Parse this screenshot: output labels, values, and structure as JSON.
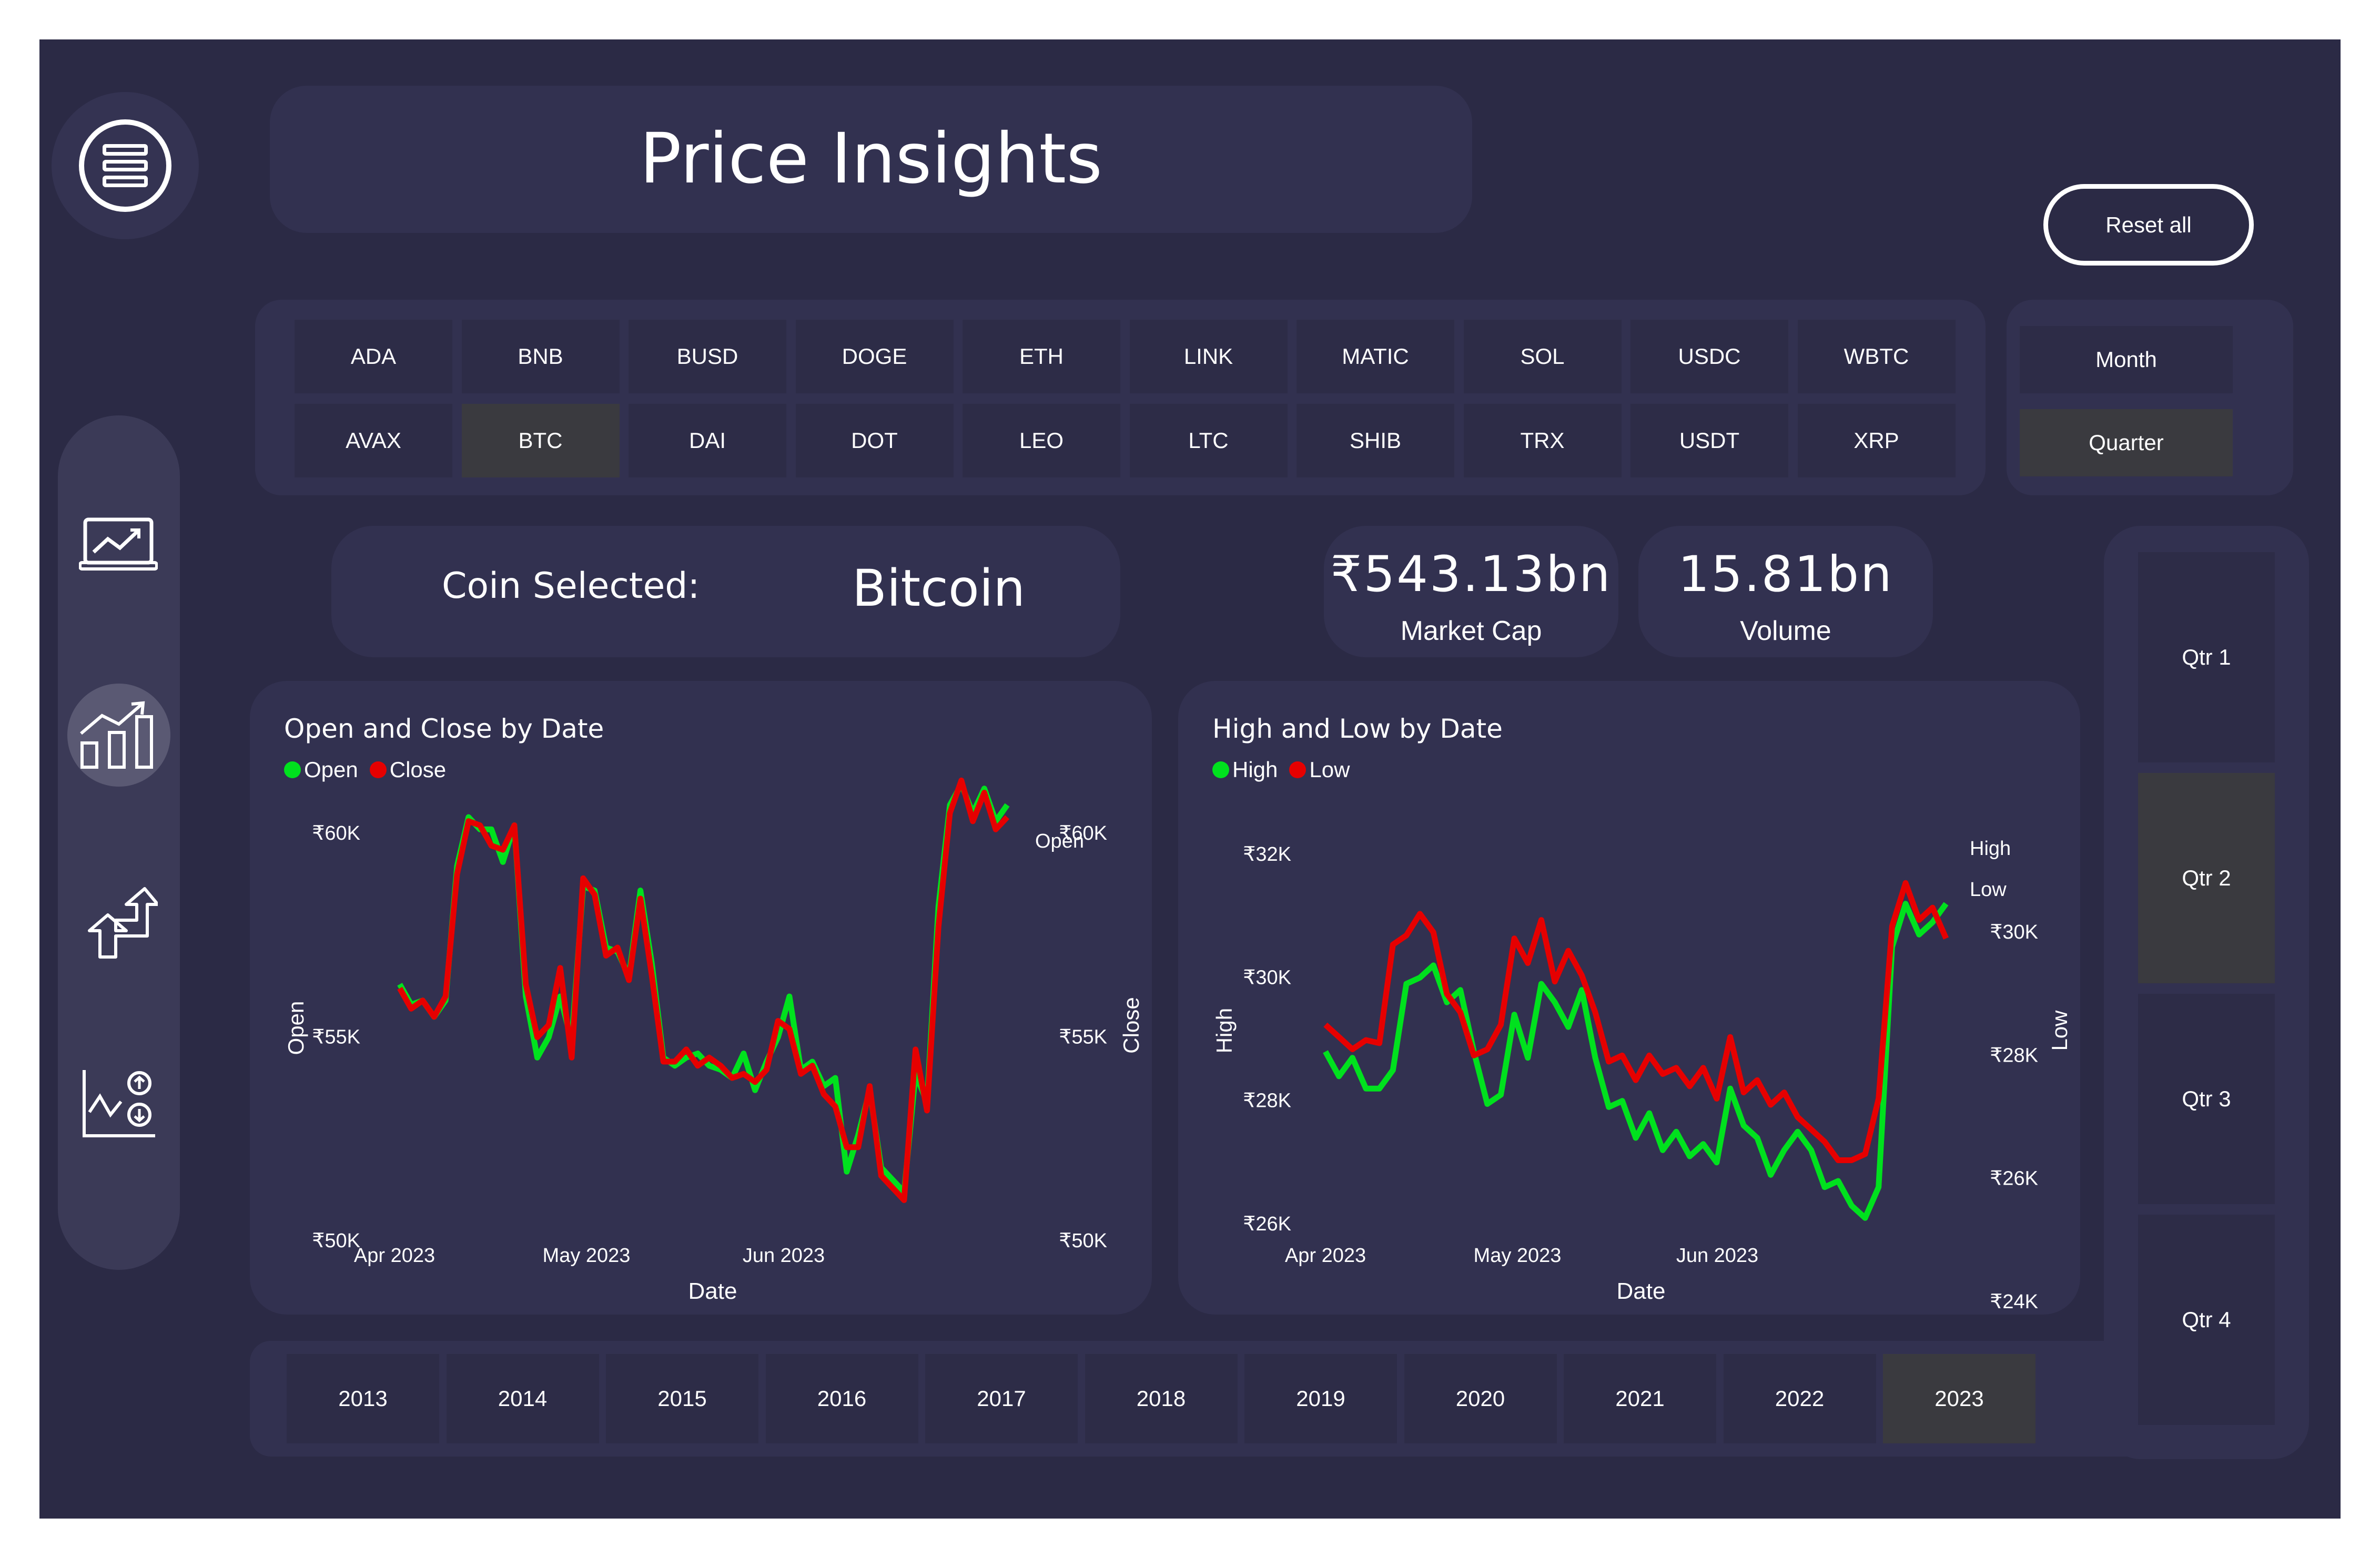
{
  "header": {
    "title": "Price Insights",
    "reset_label": "Reset all"
  },
  "nav": {
    "items": [
      "menu-icon",
      "line-chart-icon",
      "bar-chart-icon",
      "swap-arrows-icon",
      "scatter-chart-icon"
    ],
    "active": "bar-chart-icon"
  },
  "coins": {
    "row1": [
      "ADA",
      "BNB",
      "BUSD",
      "DOGE",
      "ETH",
      "LINK",
      "MATIC",
      "SOL",
      "USDC",
      "WBTC"
    ],
    "row2": [
      "AVAX",
      "BTC",
      "DAI",
      "DOT",
      "LEO",
      "LTC",
      "SHIB",
      "TRX",
      "USDT",
      "XRP"
    ],
    "selected": "BTC"
  },
  "period": {
    "options": [
      "Month",
      "Quarter"
    ],
    "selected": "Quarter"
  },
  "coin_selected": {
    "label": "Coin Selected:",
    "value": "Bitcoin"
  },
  "kpis": {
    "market_cap": {
      "value": "₹543.13bn",
      "label": "Market Cap"
    },
    "volume": {
      "value": "15.81bn",
      "label": "Volume"
    }
  },
  "years": {
    "options": [
      "2013",
      "2014",
      "2015",
      "2016",
      "2017",
      "2018",
      "2019",
      "2020",
      "2021",
      "2022",
      "2023"
    ],
    "selected": "2023"
  },
  "quarters": {
    "options": [
      "Qtr 1",
      "Qtr 2",
      "Qtr 3",
      "Qtr 4"
    ],
    "selected": "Qtr 2"
  },
  "colors": {
    "background": "#2b2a45",
    "panel": "#323150",
    "tile": "#2d2c47",
    "selected_tile": "#3a3a3f",
    "green": "#00e11e",
    "red": "#e60000"
  },
  "chart_data": [
    {
      "type": "line",
      "title": "Open and Close by Date",
      "xlabel": "Date",
      "ylabel_left": "Open",
      "ylabel_right": "Close",
      "x_ticks": [
        "Apr 2023",
        "May 2023",
        "Jun 2023"
      ],
      "y_ticks_left": [
        "₹60K",
        "₹55K",
        "₹50K"
      ],
      "y_ticks_right": [
        "₹60K",
        "₹55K",
        "₹50K"
      ],
      "ylim": [
        50000,
        60000
      ],
      "end_label": "Open",
      "series": [
        {
          "name": "Open",
          "color": "#00e11e",
          "axis": "left",
          "values": [
            56300,
            55800,
            55900,
            55500,
            55900,
            59200,
            60400,
            60100,
            60100,
            59300,
            60200,
            56000,
            54500,
            55000,
            56000,
            54900,
            58700,
            58600,
            57200,
            57100,
            56500,
            58600,
            56800,
            54500,
            54300,
            54500,
            54600,
            54300,
            54200,
            54000,
            54600,
            53700,
            54400,
            55000,
            56000,
            54200,
            54400,
            53800,
            54000,
            51700,
            52600,
            53700,
            51800,
            51500,
            51200,
            54100,
            53400,
            58200,
            60700,
            61200,
            60500,
            61100,
            60300,
            60700
          ]
        },
        {
          "name": "Close",
          "color": "#e60000",
          "axis": "right",
          "values": [
            56200,
            55700,
            55900,
            55500,
            56000,
            59000,
            60300,
            60200,
            59700,
            59600,
            60200,
            56300,
            55000,
            55300,
            56700,
            54500,
            58900,
            58500,
            57000,
            57200,
            56400,
            58400,
            56500,
            54400,
            54400,
            54700,
            54300,
            54500,
            54300,
            54000,
            54100,
            53900,
            54200,
            55400,
            55200,
            54100,
            54300,
            53600,
            53300,
            52300,
            52300,
            53800,
            51600,
            51300,
            51000,
            54700,
            53200,
            57700,
            60500,
            61300,
            60300,
            61000,
            60100,
            60400
          ]
        }
      ]
    },
    {
      "type": "line",
      "title": "High and Low by Date",
      "xlabel": "Date",
      "ylabel_left": "High",
      "ylabel_right": "Low",
      "x_ticks": [
        "Apr 2023",
        "May 2023",
        "Jun 2023"
      ],
      "y_ticks_left": [
        "₹32K",
        "₹30K",
        "₹28K",
        "₹26K"
      ],
      "y_ticks_right": [
        "₹30K",
        "₹28K",
        "₹26K",
        "₹24K"
      ],
      "ylim_left": [
        25000,
        32000
      ],
      "ylim_right": [
        24000,
        31000
      ],
      "end_labels": [
        "High",
        "Low"
      ],
      "series": [
        {
          "name": "High",
          "color": "#00e11e",
          "axis": "left",
          "values": [
            28800,
            28400,
            28700,
            28200,
            28200,
            28500,
            29900,
            30000,
            30200,
            29600,
            29800,
            28800,
            27950,
            28100,
            29400,
            28700,
            29900,
            29600,
            29200,
            29800,
            28700,
            27900,
            28000,
            27400,
            27800,
            27200,
            27500,
            27100,
            27300,
            27000,
            28200,
            27600,
            27400,
            26800,
            27200,
            27500,
            27200,
            26600,
            26700,
            26300,
            26100,
            26600,
            30500,
            31200,
            30700,
            30900,
            31200
          ]
        },
        {
          "name": "Low",
          "color": "#e60000",
          "axis": "right",
          "values": [
            28500,
            28300,
            28100,
            28250,
            28200,
            29800,
            29950,
            30300,
            30000,
            29000,
            28700,
            28000,
            28100,
            28500,
            29900,
            29500,
            30200,
            29200,
            29700,
            29300,
            28700,
            27900,
            28000,
            27600,
            28000,
            27700,
            27800,
            27500,
            27800,
            27300,
            28300,
            27400,
            27600,
            27200,
            27400,
            27000,
            26800,
            26600,
            26300,
            26300,
            26400,
            27300,
            30100,
            30800,
            30200,
            30400,
            29900
          ]
        }
      ]
    }
  ]
}
